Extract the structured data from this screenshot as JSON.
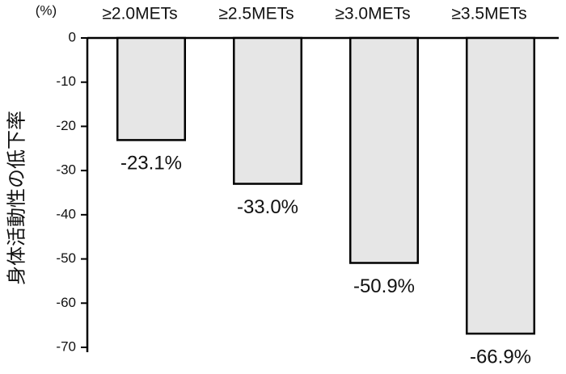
{
  "chart_data": {
    "type": "bar",
    "y_label": "身体活動性の低下率",
    "unit_label": "(%)",
    "categories": [
      "≥2.0METs",
      "≥2.5METs",
      "≥3.0METs",
      "≥3.5METs"
    ],
    "values": [
      -23.1,
      -33.0,
      -50.9,
      -66.9
    ],
    "value_labels": [
      "-23.1%",
      "-33.0%",
      "-50.9%",
      "-66.9%"
    ],
    "color": "#e6e6e6",
    "ylim": [
      -70,
      0
    ],
    "yticks": [
      0,
      -10,
      -20,
      -30,
      -40,
      -50,
      -60,
      -70
    ]
  }
}
